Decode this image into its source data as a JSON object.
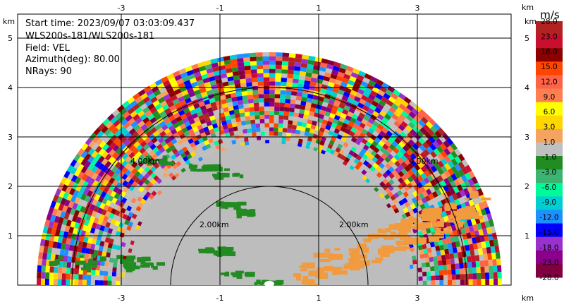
{
  "info": {
    "start_time": "Start time: 2023/09/07 03:03:09.437",
    "instrument": "WLS200s-181/WLS200s-181",
    "field": "Field: VEL",
    "azimuth": "Azimuth(deg): 80.00",
    "nrays": "NRays: 90"
  },
  "axes": {
    "unit": "km",
    "x_ticks": [
      "-3",
      "-1",
      "1",
      "3"
    ],
    "y_ticks": [
      "1",
      "2",
      "3",
      "4",
      "5"
    ],
    "range_ring_labels": [
      "2.00km",
      "2.00km",
      "4.00km",
      "4.00km"
    ]
  },
  "colorbar": {
    "unit": "m/s",
    "labels": [
      "28.0",
      "23.0",
      "18.0",
      "15.0",
      "12.0",
      "9.0",
      "6.0",
      "3.0",
      "1.0",
      "-1.0",
      "-3.0",
      "-6.0",
      "-9.0",
      "-12.0",
      "-15.0",
      "-18.0",
      "-23.0",
      "-28.0"
    ],
    "colors": [
      "#b22222",
      "#c8102e",
      "#8b0000",
      "#ff4500",
      "#ff6347",
      "#ff7f50",
      "#ffff00",
      "#ffd700",
      "#f4a460",
      "#c0c0c0",
      "#228b22",
      "#3cb371",
      "#00fa9a",
      "#00ced1",
      "#1e90ff",
      "#0000ff",
      "#9932cc",
      "#8b008b",
      "#800040"
    ]
  },
  "colors": {
    "background_fill": "#bdbdbd",
    "green_echo": "#228b22",
    "orange_echo": "#f19a3e"
  }
}
